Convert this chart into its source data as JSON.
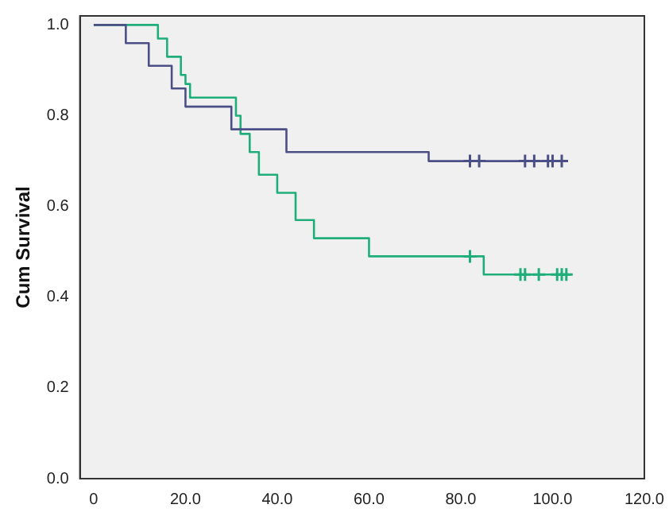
{
  "chart_data": {
    "type": "step",
    "ylabel": "Cum Survival",
    "xlim": [
      -3,
      120
    ],
    "ylim": [
      0,
      1.02
    ],
    "xticks": [
      0,
      {
        "value": 20,
        "label": "20.0"
      },
      {
        "value": 40,
        "label": "40.0"
      },
      {
        "value": 60,
        "label": "60.0"
      },
      {
        "value": 80,
        "label": "80.0"
      },
      {
        "value": 100,
        "label": "100.0"
      },
      {
        "value": 120,
        "label": "120.0"
      }
    ],
    "yticks": [
      {
        "value": 0,
        "label": "0.0"
      },
      {
        "value": 0.2,
        "label": "0.2"
      },
      {
        "value": 0.4,
        "label": "0.4"
      },
      {
        "value": 0.6,
        "label": "0.6"
      },
      {
        "value": 0.8,
        "label": "0.8"
      },
      {
        "value": 1,
        "label": "1.0"
      }
    ],
    "grid": false,
    "legend": false,
    "series": [
      {
        "color": "#4b4f86",
        "marker": "none",
        "x": [
          0,
          7,
          12,
          17,
          20,
          30,
          42,
          73,
          103
        ],
        "values": [
          1.0,
          0.96,
          0.91,
          0.86,
          0.82,
          0.77,
          0.72,
          0.7,
          0.7
        ]
      },
      {
        "color": "#1fae7a",
        "marker": "none",
        "x": [
          0,
          14,
          16,
          19,
          20,
          21,
          31,
          32,
          34,
          36,
          40,
          44,
          48,
          60,
          85,
          104
        ],
        "values": [
          1.0,
          0.97,
          0.93,
          0.89,
          0.87,
          0.84,
          0.8,
          0.76,
          0.72,
          0.67,
          0.63,
          0.57,
          0.53,
          0.49,
          0.45,
          0.45
        ]
      },
      {
        "type": "scatter",
        "color": "#4b4f86",
        "marker": "cross",
        "x": [
          82,
          84,
          94,
          96,
          99,
          100,
          102
        ],
        "values": [
          0.7,
          0.7,
          0.7,
          0.7,
          0.7,
          0.7,
          0.7
        ]
      },
      {
        "type": "scatter",
        "color": "#1fae7a",
        "marker": "cross",
        "x": [
          82,
          93,
          94,
          97,
          101,
          102,
          103
        ],
        "values": [
          0.49,
          0.45,
          0.45,
          0.45,
          0.45,
          0.45,
          0.45
        ]
      }
    ]
  }
}
